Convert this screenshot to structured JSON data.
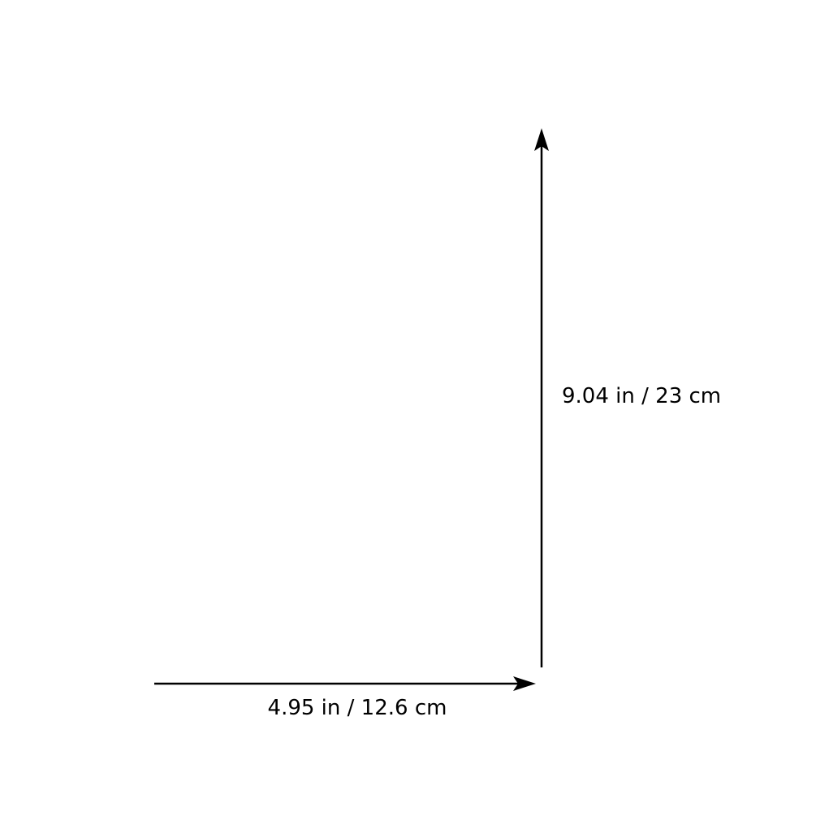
{
  "dimensions": {
    "height": {
      "label": "9.04 in / 23 cm"
    },
    "width": {
      "label": "4.95 in / 12.6 cm"
    }
  },
  "colors": {
    "background": "#ffffff",
    "ink": "#000000"
  },
  "icons": {
    "height_arrow": "arrow-up-icon",
    "width_arrow": "arrow-right-icon"
  }
}
